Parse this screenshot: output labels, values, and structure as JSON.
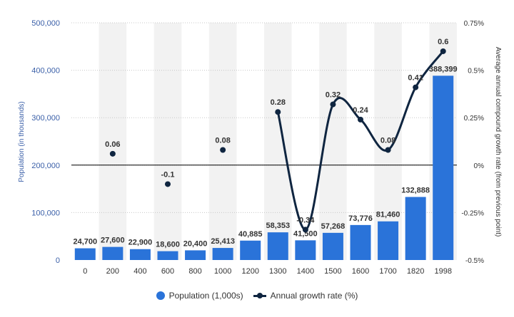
{
  "chart_data": {
    "type": "bar+line",
    "categories": [
      "0",
      "200",
      "400",
      "600",
      "800",
      "1000",
      "1200",
      "1300",
      "1400",
      "1500",
      "1600",
      "1700",
      "1820",
      "1998"
    ],
    "series": [
      {
        "name": "Population (1,000s)",
        "type": "bar",
        "axis": "left",
        "color": "#2a73d9",
        "values": [
          24700,
          27600,
          22900,
          18600,
          20400,
          25413,
          40885,
          58353,
          41500,
          57268,
          73776,
          81460,
          132888,
          388399
        ],
        "labels": [
          "24,700",
          "27,600",
          "22,900",
          "18,600",
          "20,400",
          "25,413",
          "40,885",
          "58,353",
          "41,500",
          "57,268",
          "73,776",
          "81,460",
          "132,888",
          "388,399"
        ]
      },
      {
        "name": "Annual growth rate (%)",
        "type": "line",
        "axis": "right",
        "color": "#0f2540",
        "values": [
          null,
          0.06,
          null,
          -0.1,
          null,
          0.08,
          null,
          0.28,
          -0.34,
          0.32,
          0.24,
          0.08,
          0.41,
          0.6
        ],
        "labels": [
          "",
          "0.06",
          "",
          "-0.1",
          "",
          "0.08",
          "",
          "0.28",
          "-0.34",
          "0.32",
          "0.24",
          "0.08",
          "0.41",
          "0.6"
        ]
      }
    ],
    "ylabel": "Population (in thousands)",
    "y2label": "Average annual compound growth rate (from previous point)",
    "ylim": [
      0,
      500000
    ],
    "y2lim": [
      -0.5,
      0.75
    ],
    "yticks": [
      "0",
      "100,000",
      "200,000",
      "300,000",
      "400,000",
      "500,000"
    ],
    "yticks_values": [
      0,
      100000,
      200000,
      300000,
      400000,
      500000
    ],
    "y2ticks": [
      "-0.5%",
      "-0.25%",
      "0%",
      "0.25%",
      "0.5%",
      "0.75%"
    ],
    "y2ticks_values": [
      -0.5,
      -0.25,
      0,
      0.25,
      0.5,
      0.75
    ],
    "grid": true,
    "legend_position": "bottom"
  },
  "legend": {
    "population_label": "Population (1,000s)",
    "growth_label": "Annual growth rate (%)"
  }
}
